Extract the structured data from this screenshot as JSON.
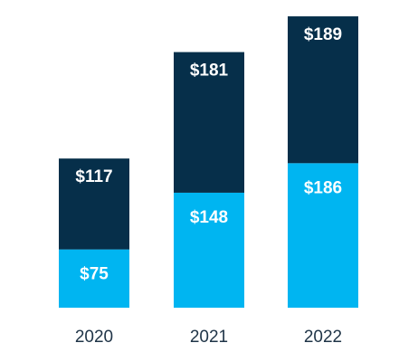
{
  "chart_data": {
    "type": "bar",
    "stacked": true,
    "categories": [
      "2020",
      "2021",
      "2022"
    ],
    "series": [
      {
        "values": [
          75,
          148,
          186
        ],
        "labels": [
          "$75",
          "$148",
          "$186"
        ],
        "color": "#00b5f1"
      },
      {
        "values": [
          117,
          181,
          189
        ],
        "labels": [
          "$117",
          "$181",
          "$189"
        ],
        "color": "#062f4a"
      }
    ],
    "ylim": [
      0,
      375
    ],
    "grid": false,
    "legend": "none"
  }
}
